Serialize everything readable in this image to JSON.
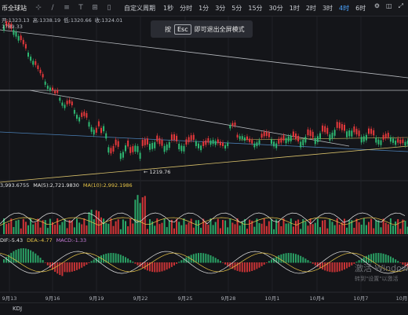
{
  "toolbar": {
    "title": "币全球站",
    "custom_period": "自定义周期",
    "intervals": [
      "1秒",
      "分时",
      "1分",
      "3分",
      "5分",
      "15分",
      "30分",
      "1时",
      "2时",
      "3时",
      "4时",
      "6时"
    ],
    "active_interval": "4时"
  },
  "ohlc": {
    "open": "开:1323.13",
    "high": "高:1338.19",
    "low": "低:1320.66",
    "close": "收:1324.01"
  },
  "price_top": "1789.33",
  "esc_tip": {
    "prefix": "按",
    "key": "Esc",
    "suffix": "即可退出全屏模式"
  },
  "low_marker": "← 1219.76",
  "volume": {
    "value": "3,993.6755",
    "ma5": "MA(5):2,721.9830",
    "ma10": "MA(10):2,992.1986"
  },
  "macd": {
    "dif": "DIF:-5.43",
    "dea": "DEA:-4.77",
    "macd": "MACD:-1.33"
  },
  "xaxis": [
    "9月13",
    "9月16",
    "9月19",
    "9月22",
    "9月25",
    "9月28",
    "10月1",
    "10月4",
    "10月7",
    "10月"
  ],
  "bottom": {
    "indicator": "KDJ"
  },
  "watermark": {
    "line1": "激活 Windows",
    "line2": "转到\"设置\"以激活"
  },
  "colors": {
    "up": "#2eb872",
    "down": "#e5383b",
    "background": "#141519",
    "accent": "#4aa3ff"
  }
}
